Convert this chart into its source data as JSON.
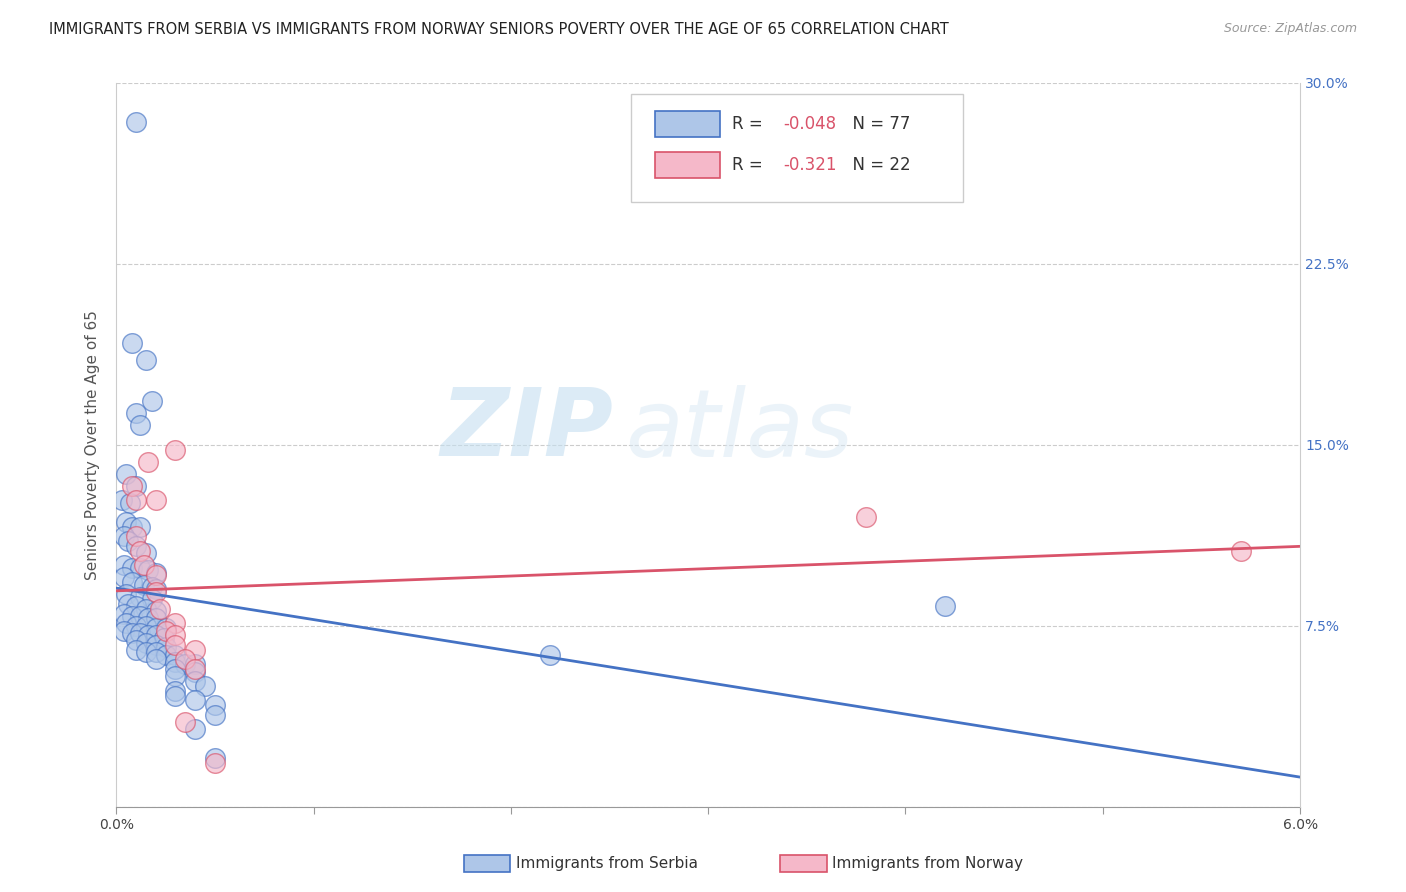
{
  "title": "IMMIGRANTS FROM SERBIA VS IMMIGRANTS FROM NORWAY SENIORS POVERTY OVER THE AGE OF 65 CORRELATION CHART",
  "source": "Source: ZipAtlas.com",
  "ylabel": "Seniors Poverty Over the Age of 65",
  "xlabel_serbia": "Immigrants from Serbia",
  "xlabel_norway": "Immigrants from Norway",
  "x_min": 0.0,
  "x_max": 0.06,
  "y_min": 0.0,
  "y_max": 0.3,
  "y_ticks": [
    0.0,
    0.075,
    0.15,
    0.225,
    0.3
  ],
  "y_tick_labels": [
    "",
    "7.5%",
    "15.0%",
    "22.5%",
    "30.0%"
  ],
  "x_ticks": [
    0.0,
    0.01,
    0.02,
    0.03,
    0.04,
    0.05,
    0.06
  ],
  "x_tick_labels": [
    "0.0%",
    "",
    "",
    "",
    "",
    "",
    "6.0%"
  ],
  "serbia_R": -0.048,
  "serbia_N": 77,
  "norway_R": -0.321,
  "norway_N": 22,
  "serbia_color": "#aec6e8",
  "norway_color": "#f5b8c9",
  "serbia_line_color": "#4472c4",
  "norway_line_color": "#d9536a",
  "serbia_scatter": [
    [
      0.001,
      0.284
    ],
    [
      0.0008,
      0.192
    ],
    [
      0.0015,
      0.185
    ],
    [
      0.0018,
      0.168
    ],
    [
      0.001,
      0.163
    ],
    [
      0.0012,
      0.158
    ],
    [
      0.0005,
      0.138
    ],
    [
      0.001,
      0.133
    ],
    [
      0.0003,
      0.127
    ],
    [
      0.0007,
      0.126
    ],
    [
      0.0005,
      0.118
    ],
    [
      0.0008,
      0.116
    ],
    [
      0.0012,
      0.116
    ],
    [
      0.0004,
      0.112
    ],
    [
      0.0006,
      0.11
    ],
    [
      0.001,
      0.108
    ],
    [
      0.0015,
      0.105
    ],
    [
      0.0004,
      0.1
    ],
    [
      0.0008,
      0.099
    ],
    [
      0.0012,
      0.099
    ],
    [
      0.0016,
      0.098
    ],
    [
      0.002,
      0.097
    ],
    [
      0.0004,
      0.095
    ],
    [
      0.0008,
      0.093
    ],
    [
      0.0014,
      0.092
    ],
    [
      0.0018,
      0.091
    ],
    [
      0.002,
      0.09
    ],
    [
      0.0005,
      0.088
    ],
    [
      0.0012,
      0.087
    ],
    [
      0.0018,
      0.086
    ],
    [
      0.0006,
      0.084
    ],
    [
      0.001,
      0.083
    ],
    [
      0.0015,
      0.082
    ],
    [
      0.002,
      0.081
    ],
    [
      0.0004,
      0.08
    ],
    [
      0.0008,
      0.079
    ],
    [
      0.0012,
      0.079
    ],
    [
      0.0016,
      0.078
    ],
    [
      0.002,
      0.078
    ],
    [
      0.0005,
      0.076
    ],
    [
      0.001,
      0.075
    ],
    [
      0.0015,
      0.075
    ],
    [
      0.002,
      0.074
    ],
    [
      0.0025,
      0.074
    ],
    [
      0.0004,
      0.073
    ],
    [
      0.0008,
      0.072
    ],
    [
      0.0012,
      0.072
    ],
    [
      0.0016,
      0.071
    ],
    [
      0.002,
      0.071
    ],
    [
      0.0024,
      0.07
    ],
    [
      0.001,
      0.069
    ],
    [
      0.0015,
      0.068
    ],
    [
      0.002,
      0.067
    ],
    [
      0.0025,
      0.066
    ],
    [
      0.001,
      0.065
    ],
    [
      0.0015,
      0.064
    ],
    [
      0.002,
      0.064
    ],
    [
      0.0025,
      0.063
    ],
    [
      0.003,
      0.063
    ],
    [
      0.002,
      0.061
    ],
    [
      0.003,
      0.06
    ],
    [
      0.0035,
      0.059
    ],
    [
      0.004,
      0.059
    ],
    [
      0.003,
      0.057
    ],
    [
      0.004,
      0.056
    ],
    [
      0.003,
      0.054
    ],
    [
      0.004,
      0.052
    ],
    [
      0.0045,
      0.05
    ],
    [
      0.003,
      0.048
    ],
    [
      0.003,
      0.046
    ],
    [
      0.004,
      0.044
    ],
    [
      0.005,
      0.042
    ],
    [
      0.005,
      0.038
    ],
    [
      0.004,
      0.032
    ],
    [
      0.005,
      0.02
    ],
    [
      0.022,
      0.063
    ],
    [
      0.042,
      0.083
    ]
  ],
  "norway_scatter": [
    [
      0.0008,
      0.133
    ],
    [
      0.001,
      0.127
    ],
    [
      0.001,
      0.112
    ],
    [
      0.0012,
      0.106
    ],
    [
      0.0016,
      0.143
    ],
    [
      0.002,
      0.127
    ],
    [
      0.0014,
      0.1
    ],
    [
      0.002,
      0.096
    ],
    [
      0.002,
      0.089
    ],
    [
      0.003,
      0.148
    ],
    [
      0.0022,
      0.082
    ],
    [
      0.003,
      0.076
    ],
    [
      0.0025,
      0.073
    ],
    [
      0.003,
      0.071
    ],
    [
      0.003,
      0.067
    ],
    [
      0.004,
      0.065
    ],
    [
      0.0035,
      0.061
    ],
    [
      0.004,
      0.057
    ],
    [
      0.0035,
      0.035
    ],
    [
      0.005,
      0.018
    ],
    [
      0.038,
      0.12
    ],
    [
      0.057,
      0.106
    ]
  ],
  "watermark_zip": "ZIP",
  "watermark_atlas": "atlas",
  "title_fontsize": 10.5,
  "axis_label_fontsize": 11,
  "tick_fontsize": 10,
  "legend_fontsize": 12
}
